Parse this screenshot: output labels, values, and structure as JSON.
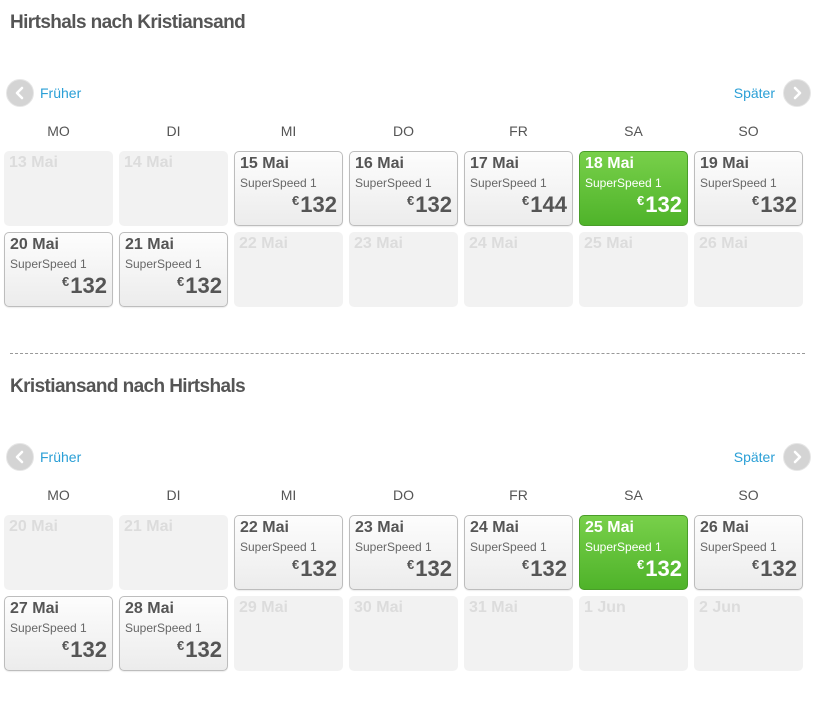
{
  "currency": "€",
  "nav": {
    "prev_label": "Früher",
    "next_label": "Später"
  },
  "weekdays": [
    "MO",
    "DI",
    "MI",
    "DO",
    "FR",
    "SA",
    "SO"
  ],
  "colors": {
    "selected": "#5cbf35",
    "link": "#2a9fd6"
  },
  "sections": [
    {
      "title": "Hirtshals nach Kristiansand",
      "weeks": [
        [
          {
            "date": "13 Mai",
            "state": "empty"
          },
          {
            "date": "14 Mai",
            "state": "empty"
          },
          {
            "date": "15 Mai",
            "state": "avail",
            "ship": "SuperSpeed 1",
            "price": "132"
          },
          {
            "date": "16 Mai",
            "state": "avail",
            "ship": "SuperSpeed 1",
            "price": "132"
          },
          {
            "date": "17 Mai",
            "state": "avail",
            "ship": "SuperSpeed 1",
            "price": "144"
          },
          {
            "date": "18 Mai",
            "state": "selected",
            "ship": "SuperSpeed 1",
            "price": "132"
          },
          {
            "date": "19 Mai",
            "state": "avail",
            "ship": "SuperSpeed 1",
            "price": "132"
          }
        ],
        [
          {
            "date": "20 Mai",
            "state": "avail",
            "ship": "SuperSpeed 1",
            "price": "132"
          },
          {
            "date": "21 Mai",
            "state": "avail",
            "ship": "SuperSpeed 1",
            "price": "132"
          },
          {
            "date": "22 Mai",
            "state": "empty"
          },
          {
            "date": "23 Mai",
            "state": "empty"
          },
          {
            "date": "24 Mai",
            "state": "empty"
          },
          {
            "date": "25 Mai",
            "state": "empty"
          },
          {
            "date": "26 Mai",
            "state": "empty"
          }
        ]
      ]
    },
    {
      "title": "Kristiansand nach Hirtshals",
      "weeks": [
        [
          {
            "date": "20 Mai",
            "state": "empty"
          },
          {
            "date": "21 Mai",
            "state": "empty"
          },
          {
            "date": "22 Mai",
            "state": "avail",
            "ship": "SuperSpeed 1",
            "price": "132"
          },
          {
            "date": "23 Mai",
            "state": "avail",
            "ship": "SuperSpeed 1",
            "price": "132"
          },
          {
            "date": "24 Mai",
            "state": "avail",
            "ship": "SuperSpeed 1",
            "price": "132"
          },
          {
            "date": "25 Mai",
            "state": "selected",
            "ship": "SuperSpeed 1",
            "price": "132"
          },
          {
            "date": "26 Mai",
            "state": "avail",
            "ship": "SuperSpeed 1",
            "price": "132"
          }
        ],
        [
          {
            "date": "27 Mai",
            "state": "avail",
            "ship": "SuperSpeed 1",
            "price": "132"
          },
          {
            "date": "28 Mai",
            "state": "avail",
            "ship": "SuperSpeed 1",
            "price": "132"
          },
          {
            "date": "29 Mai",
            "state": "empty"
          },
          {
            "date": "30 Mai",
            "state": "empty"
          },
          {
            "date": "31 Mai",
            "state": "empty"
          },
          {
            "date": "1 Jun",
            "state": "empty"
          },
          {
            "date": "2 Jun",
            "state": "empty"
          }
        ]
      ]
    }
  ]
}
